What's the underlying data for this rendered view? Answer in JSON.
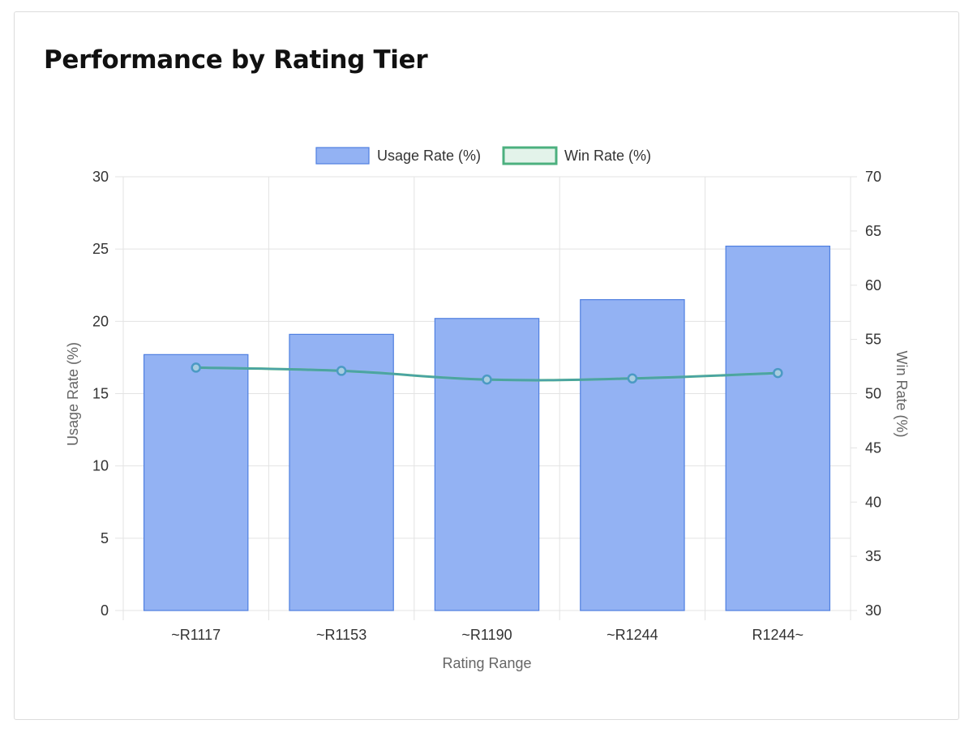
{
  "page": {
    "title": "Performance by Rating Tier"
  },
  "colors": {
    "bar_fill": "#93b2f3",
    "bar_stroke": "#4f7fe0",
    "line": "#4b9ac4",
    "legend_line_stroke": "#4cb07f",
    "legend_line_fill": "#e3f3ea",
    "grid": "#e3e3e3",
    "tick_text": "#333333",
    "axis_title": "#666666"
  },
  "chart_data": {
    "type": "bar",
    "categories": [
      "~R1117",
      "~R1153",
      "~R1190",
      "~R1244",
      "R1244~"
    ],
    "series": [
      {
        "name": "Usage Rate (%)",
        "type": "bar",
        "axis": "left",
        "values": [
          17.7,
          19.1,
          20.2,
          21.5,
          25.2
        ]
      },
      {
        "name": "Win Rate (%)",
        "type": "line",
        "axis": "right",
        "values": [
          52.4,
          52.1,
          51.3,
          51.4,
          51.9
        ]
      }
    ],
    "xlabel": "Rating Range",
    "ylabel": "Usage Rate (%)",
    "y2label": "Win Rate (%)",
    "ylim": [
      0,
      30
    ],
    "y2lim": [
      30,
      70
    ],
    "yticks": [
      0,
      5,
      10,
      15,
      20,
      25,
      30
    ],
    "y2ticks": [
      30,
      35,
      40,
      45,
      50,
      55,
      60,
      65,
      70
    ],
    "legend": "top-center",
    "grid": true
  }
}
